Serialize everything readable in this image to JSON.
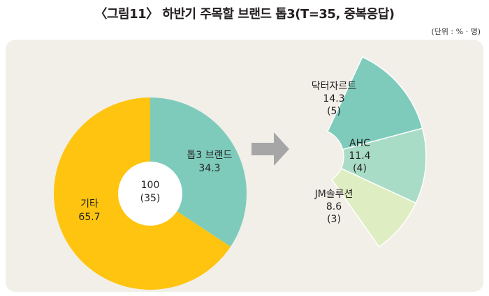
{
  "title": "〈그림11〉 하반기 주목할 브랜드 톱3(T=35, 중복응답)",
  "unit": "(단위 : % · 명)",
  "colors": {
    "panel": "#f1efe8",
    "others": "#fec40f",
    "top3": "#7ecbbc",
    "arrow": "#a6a6a6",
    "drtsurt": "#7ecbbc",
    "ahc": "#a9dcc6",
    "jm": "#dfedc2"
  },
  "chart_data": [
    {
      "type": "pie",
      "center_label": "100",
      "center_sub": "(35)",
      "slices": [
        {
          "name": "톱3 브랜드",
          "value": 34.3
        },
        {
          "name": "기타",
          "value": 65.7
        }
      ]
    },
    {
      "type": "pie",
      "slices": [
        {
          "name": "닥터자르트",
          "value": 14.3,
          "count": "(5)"
        },
        {
          "name": "AHC",
          "value": 11.4,
          "count": "(4)"
        },
        {
          "name": "JM솔루션",
          "value": 8.6,
          "count": "(3)"
        }
      ]
    }
  ]
}
